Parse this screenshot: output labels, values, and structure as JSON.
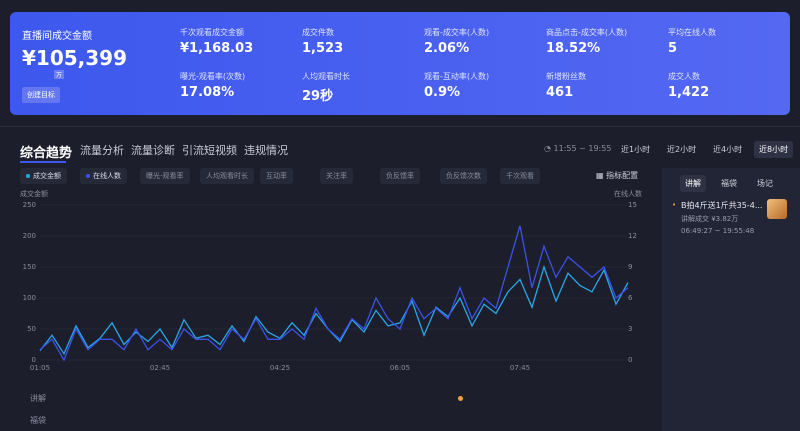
{
  "header": {
    "title": "直播间成交金额",
    "main_value": "¥105,399",
    "unit": "万",
    "button": "创建目标",
    "metrics": [
      {
        "label": "千次观看成交金额",
        "value": "¥1,168.03"
      },
      {
        "label": "成交件数",
        "value": "1,523"
      },
      {
        "label": "观看-成交率(人数)",
        "value": "2.06%"
      },
      {
        "label": "商品点击-成交率(人数)",
        "value": "18.52%"
      },
      {
        "label": "平均在线人数",
        "value": "5"
      },
      {
        "label": "曝光-观看率(次数)",
        "value": "17.08%"
      },
      {
        "label": "人均观看时长",
        "value": "29秒"
      },
      {
        "label": "观看-互动率(人数)",
        "value": "0.9%"
      },
      {
        "label": "新增粉丝数",
        "value": "461"
      },
      {
        "label": "成交人数",
        "value": "1,422"
      }
    ]
  },
  "tabs": [
    "综合趋势",
    "流量分析",
    "流量诊断",
    "引流短视频",
    "违规情况"
  ],
  "time_range": "11:55 ~ 19:55",
  "range_buttons": [
    "近1小时",
    "近2小时",
    "近4小时",
    "近8小时"
  ],
  "metric_chips": [
    "曝光-观看率",
    "人均观看时长",
    "互动率",
    "关注率",
    "负反馈率",
    "负反馈次数",
    "千次观看"
  ],
  "config_button": "指标配置",
  "bottom_rows": [
    "讲解",
    "福袋"
  ],
  "side_panel": {
    "tabs": [
      "讲解",
      "福袋",
      "场记"
    ],
    "item_title": "B拍4斤送1斤共35-4...",
    "item_sales": "讲解成交 ¥3.82万",
    "item_time": "06:49:27 ~ 19:55:48"
  },
  "chart_data": {
    "type": "line",
    "ylabel": "成交金额",
    "y2label": "在线人数",
    "categories": [
      "01:05",
      null,
      null,
      null,
      null,
      null,
      null,
      null,
      null,
      null,
      "02:45",
      null,
      null,
      null,
      null,
      null,
      null,
      null,
      null,
      null,
      "04:25",
      null,
      null,
      null,
      null,
      null,
      null,
      null,
      null,
      null,
      "06:05",
      null,
      null,
      null,
      null,
      null,
      null,
      null,
      null,
      null,
      "07:45",
      null,
      null,
      null,
      null,
      null,
      null,
      null,
      null,
      null
    ],
    "series": [
      {
        "name": "成交金额",
        "color": "#2aa6e6",
        "values": [
          15,
          40,
          10,
          55,
          20,
          35,
          60,
          25,
          45,
          30,
          50,
          20,
          65,
          35,
          40,
          25,
          55,
          30,
          70,
          45,
          35,
          60,
          40,
          75,
          50,
          30,
          65,
          45,
          80,
          55,
          60,
          95,
          40,
          85,
          70,
          100,
          55,
          90,
          75,
          110,
          130,
          85,
          150,
          95,
          140,
          120,
          110,
          145,
          90,
          125
        ]
      },
      {
        "name": "在线人数",
        "color": "#3b52e6",
        "axis": "y2",
        "values": [
          1,
          2,
          0,
          3,
          1,
          2,
          2,
          1,
          3,
          1,
          2,
          1,
          3,
          2,
          2,
          1,
          3,
          2,
          4,
          2,
          2,
          3,
          2,
          5,
          3,
          2,
          4,
          3,
          6,
          4,
          3,
          6,
          4,
          5,
          4,
          7,
          4,
          6,
          5,
          9,
          13,
          7,
          11,
          8,
          10,
          9,
          8,
          9,
          6,
          7
        ]
      }
    ],
    "ylim": [
      0,
      250
    ],
    "yticks": [
      0,
      50,
      100,
      150,
      200,
      250
    ],
    "y2lim": [
      0,
      15
    ],
    "y2ticks": [
      0,
      3,
      6,
      9,
      12,
      15
    ],
    "grid": true
  }
}
